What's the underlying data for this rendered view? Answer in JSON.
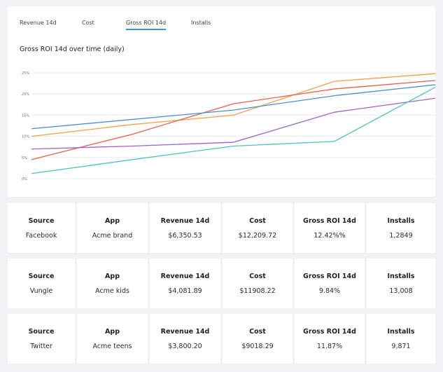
{
  "tabs": [
    {
      "label": "Revenue 14d",
      "active": false
    },
    {
      "label": "Cost",
      "active": false
    },
    {
      "label": "Gross ROI 14d",
      "active": true
    },
    {
      "label": "Installs",
      "active": false
    }
  ],
  "colors": {
    "accent": "#3f8fd8"
  },
  "chart_data": {
    "type": "line",
    "title": "Gross ROI 14d over time (daily)",
    "ylabel": "",
    "xlabel": "",
    "ylim": [
      0,
      25
    ],
    "yticks": [
      "25%",
      "20%",
      "15%",
      "10%",
      "5%",
      "0%"
    ],
    "grid": true,
    "legend": "none",
    "x": [
      0,
      1,
      2,
      3,
      4
    ],
    "series": [
      {
        "color": "#f3a04a",
        "values": [
          10,
          12.8,
          15,
          23,
          24.8
        ]
      },
      {
        "color": "#e8604c",
        "values": [
          4.5,
          10.5,
          17.7,
          21.2,
          23.2
        ]
      },
      {
        "color": "#4a90d0",
        "values": [
          11.8,
          14,
          16.2,
          19.6,
          22.2
        ]
      },
      {
        "color": "#a064c8",
        "values": [
          7,
          7.7,
          8.6,
          15.7,
          19
        ]
      },
      {
        "color": "#4dc2c4",
        "values": [
          1.2,
          4.5,
          7.7,
          8.8,
          21.6
        ]
      }
    ]
  },
  "headers": {
    "source": "Source",
    "app": "App",
    "revenue": "Revenue 14d",
    "cost": "Cost",
    "roi": "Gross ROI 14d",
    "installs": "Installs"
  },
  "rows": [
    {
      "source": "Facebook",
      "app": "Acme brand",
      "revenue": "$6,350.53",
      "cost": "$12,209.72",
      "roi": "12.42%%",
      "installs": "1,2849"
    },
    {
      "source": "Vungle",
      "app": "Acme kids",
      "revenue": "$4,081.89",
      "cost": "$11908.22",
      "roi": "9.84%",
      "installs": "13,008"
    },
    {
      "source": "Twitter",
      "app": "Acme teens",
      "revenue": "$3,800.20",
      "cost": "$9018.29",
      "roi": "11.87%",
      "installs": "9,871"
    }
  ]
}
